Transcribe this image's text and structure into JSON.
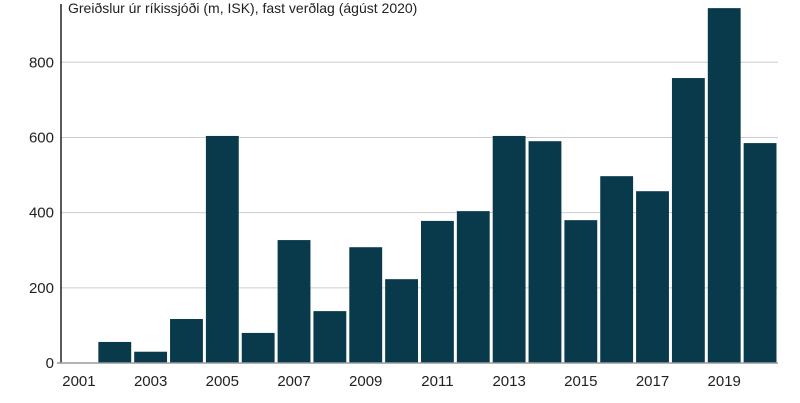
{
  "chart_data": {
    "type": "bar",
    "title": "Greiðslur úr ríkissjóði (m, ISK), fast verðlag (ágúst 2020)",
    "xlabel": "",
    "ylabel": "",
    "categories": [
      "2001",
      "2002",
      "2003",
      "2004",
      "2005",
      "2006",
      "2007",
      "2008",
      "2009",
      "2010",
      "2011",
      "2012",
      "2013",
      "2014",
      "2015",
      "2016",
      "2017",
      "2018",
      "2019",
      "2020"
    ],
    "values": [
      0,
      56,
      30,
      117,
      604,
      80,
      327,
      138,
      308,
      223,
      378,
      404,
      604,
      590,
      380,
      497,
      457,
      758,
      944,
      585
    ],
    "x_tick_labels": [
      "2001",
      "2003",
      "2005",
      "2007",
      "2009",
      "2011",
      "2013",
      "2015",
      "2017",
      "2019"
    ],
    "y_ticks": [
      0,
      200,
      400,
      600,
      800
    ],
    "ylim": [
      0,
      955
    ],
    "grid": "horizontal",
    "bar_color": "#083a4b",
    "grid_color": "#cccccc"
  }
}
